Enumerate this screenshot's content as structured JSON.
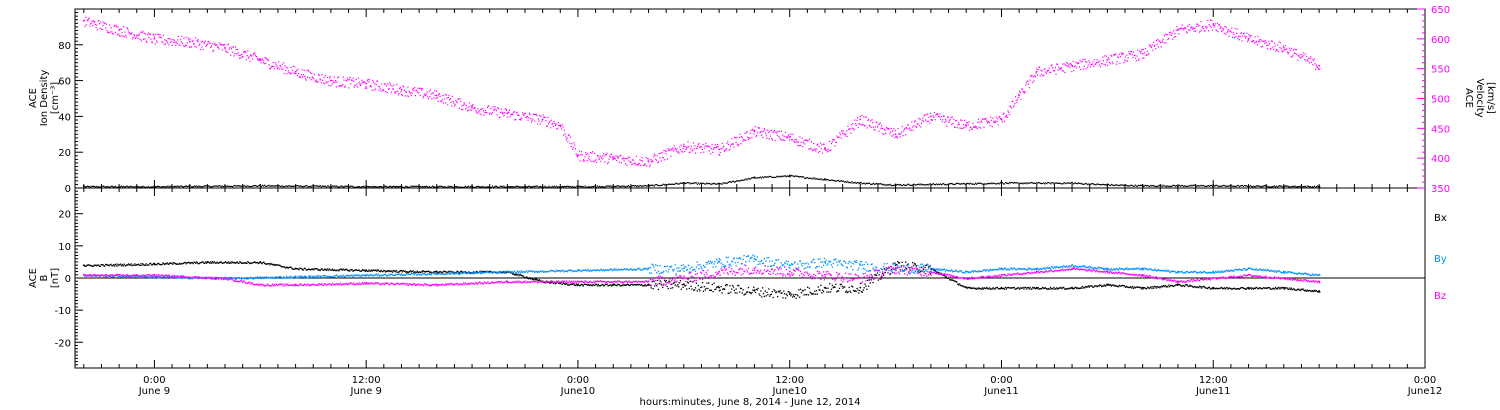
{
  "chart_data": [
    {
      "type": "scatter",
      "panel": "top",
      "ylabel_left": [
        "ACE",
        "Ion Density",
        "[cm⁻³]"
      ],
      "ylabel_right": [
        "ACE",
        "Velocity",
        "[km/s]"
      ],
      "ylim_left": [
        0,
        100
      ],
      "yticks_left": [
        "0",
        "20",
        "40",
        "60",
        "80"
      ],
      "ylim_right": [
        350,
        650
      ],
      "yticks_right": [
        "350",
        "400",
        "450",
        "500",
        "550",
        "600",
        "650"
      ],
      "series": [
        {
          "axis": "left",
          "color": "#000000",
          "x": [
            -4,
            0,
            6,
            12,
            18,
            24,
            28,
            30,
            32,
            34,
            36,
            38,
            40,
            42,
            48,
            52,
            54,
            56,
            60,
            64,
            66
          ],
          "y": [
            1,
            1,
            1.5,
            1,
            1,
            1,
            1.5,
            3,
            2.5,
            6,
            7,
            5,
            3,
            2,
            3,
            3,
            2,
            1.5,
            1.5,
            1.2,
            1
          ]
        },
        {
          "axis": "right",
          "color": "#ff00ff",
          "x": [
            -4,
            -2,
            0,
            2,
            4,
            6,
            8,
            10,
            12,
            14,
            16,
            18,
            20,
            22,
            23,
            24,
            26,
            28,
            30,
            32,
            34,
            36,
            38,
            40,
            42,
            44,
            46,
            48,
            49,
            50,
            52,
            54,
            56,
            58,
            60,
            62,
            64,
            66
          ],
          "y": [
            630,
            615,
            600,
            595,
            585,
            565,
            545,
            530,
            525,
            515,
            505,
            485,
            475,
            465,
            455,
            405,
            400,
            395,
            420,
            415,
            445,
            435,
            415,
            465,
            440,
            470,
            455,
            465,
            505,
            545,
            555,
            565,
            575,
            615,
            625,
            600,
            585,
            555
          ]
        }
      ]
    },
    {
      "type": "line",
      "panel": "bottom",
      "ylabel": [
        "ACE",
        "B",
        "[nT]"
      ],
      "ylim": [
        -28,
        28
      ],
      "yticks": [
        "-20",
        "-10",
        "0",
        "10",
        "20"
      ],
      "legend": [
        {
          "text": "Bx",
          "color": "#000000"
        },
        {
          "text": "By",
          "color": "#0090ff"
        },
        {
          "text": "Bz",
          "color": "#ff00ff"
        }
      ],
      "series": [
        {
          "name": "Bx",
          "color": "#000000",
          "x": [
            -4,
            0,
            3,
            6,
            8,
            12,
            16,
            20,
            22,
            24,
            26,
            28,
            30,
            32,
            34,
            36,
            38,
            40,
            42,
            44,
            46,
            48,
            50,
            52,
            54,
            56,
            58,
            60,
            62,
            64,
            66
          ],
          "y": [
            4,
            4.5,
            5,
            5,
            3,
            2.5,
            2,
            2,
            -1,
            -2,
            -2,
            -2,
            -2,
            -3,
            -4,
            -5,
            -3,
            -3,
            4,
            3,
            -3,
            -3,
            -3,
            -3,
            -2,
            -3,
            -2,
            -3,
            -3,
            -3,
            -4
          ]
        },
        {
          "name": "By",
          "color": "#0090ff",
          "x": [
            -4,
            0,
            4,
            8,
            12,
            16,
            20,
            24,
            28,
            30,
            32,
            34,
            36,
            38,
            40,
            42,
            44,
            46,
            48,
            50,
            52,
            54,
            56,
            58,
            60,
            62,
            64,
            66
          ],
          "y": [
            1,
            0.5,
            0,
            0.5,
            1,
            1.5,
            2,
            2.5,
            3,
            3,
            5,
            6,
            4,
            5,
            4,
            3,
            3,
            2,
            3,
            3,
            4,
            3,
            3,
            2,
            2,
            3,
            2,
            1
          ]
        },
        {
          "name": "Bz",
          "color": "#ff00ff",
          "x": [
            -4,
            0,
            4,
            6,
            8,
            12,
            16,
            20,
            24,
            28,
            30,
            32,
            34,
            36,
            38,
            40,
            42,
            44,
            46,
            48,
            50,
            52,
            54,
            56,
            58,
            60,
            62,
            64,
            66
          ],
          "y": [
            1,
            1,
            0,
            -2,
            -2,
            -1.5,
            -2,
            -1,
            -1,
            -1,
            0,
            2,
            3,
            2,
            1,
            0,
            3,
            2,
            0,
            1,
            2,
            3,
            2,
            1,
            -1,
            0,
            1,
            0,
            -1
          ]
        }
      ]
    }
  ],
  "x_axis": {
    "xlim_hours": [
      -4.5,
      72
    ],
    "ticks": [
      {
        "hour": 0,
        "time": "0:00",
        "date": "June 9"
      },
      {
        "hour": 12,
        "time": "12:00",
        "date": "June 9"
      },
      {
        "hour": 24,
        "time": "0:00",
        "date": "June10"
      },
      {
        "hour": 36,
        "time": "12:00",
        "date": "June10"
      },
      {
        "hour": 48,
        "time": "0:00",
        "date": "June11"
      },
      {
        "hour": 60,
        "time": "12:00",
        "date": "June11"
      },
      {
        "hour": 72,
        "time": "0:00",
        "date": "June12"
      }
    ],
    "label": "hours:minutes, June  8, 2014 - June 12, 2014"
  }
}
